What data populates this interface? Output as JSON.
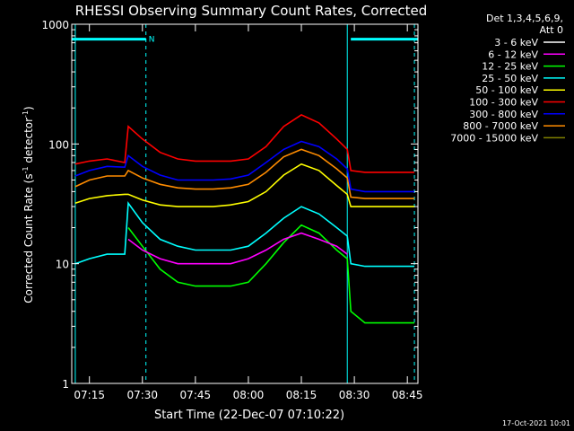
{
  "chart_data": {
    "type": "line",
    "title": "RHESSI Observing Summary Count Rates, Corrected",
    "xlabel": "Start Time (22-Dec-07 07:10:22)",
    "ylabel_main": "Corrected Count Rate (s",
    "ylabel_sup1": "-1",
    "ylabel_mid": " detector",
    "ylabel_sup2": "-1",
    "ylabel_end": ")",
    "yscale": "log",
    "ylim": [
      1,
      1000
    ],
    "xlim": [
      "07:10",
      "08:48"
    ],
    "x_ticks": [
      "07:15",
      "07:30",
      "07:45",
      "08:00",
      "08:15",
      "08:30",
      "08:45"
    ],
    "y_ticks": [
      "1",
      "10",
      "100",
      "1000"
    ],
    "grid": false,
    "legend_placement": "right",
    "legend_header": [
      "Det 1,3,4,5,6,9,",
      "Att 0"
    ],
    "timestamp": "17-Oct-2021 10:01",
    "night_marker": "N",
    "annotations": {
      "bar_intervals": [
        [
          "07:10",
          "07:31"
        ],
        [
          "08:29",
          "08:48"
        ]
      ],
      "dashed_lines": [
        "07:31",
        "08:47"
      ],
      "solid_lines": [
        "07:11",
        "08:28"
      ],
      "bar_level": 750
    },
    "x": [
      "07:11",
      "07:15",
      "07:20",
      "07:25",
      "07:26",
      "07:30",
      "07:35",
      "07:40",
      "07:45",
      "07:50",
      "07:55",
      "08:00",
      "08:05",
      "08:10",
      "08:15",
      "08:20",
      "08:25",
      "08:28",
      "08:29",
      "08:33",
      "08:38",
      "08:43",
      "08:47"
    ],
    "series": [
      {
        "name": "3 - 6 keV",
        "color": "#ffffff",
        "values": [
          null,
          null,
          null,
          null,
          null,
          null,
          null,
          null,
          null,
          null,
          null,
          null,
          null,
          null,
          null,
          null,
          null,
          null,
          null,
          null,
          null,
          null,
          null
        ]
      },
      {
        "name": "6 - 12 keV",
        "color": "#ff00ff",
        "values": [
          null,
          null,
          null,
          null,
          16,
          13,
          11,
          10,
          10,
          10,
          10,
          11,
          13,
          16,
          18,
          16,
          14,
          12,
          null,
          null,
          null,
          null,
          null
        ]
      },
      {
        "name": "12 - 25 keV",
        "color": "#00ff00",
        "values": [
          null,
          null,
          null,
          null,
          20,
          14,
          9,
          7,
          6.5,
          6.5,
          6.5,
          7,
          10,
          15,
          21,
          18,
          13,
          11,
          4,
          3.2,
          3.2,
          3.2,
          3.2
        ]
      },
      {
        "name": "25 - 50 keV",
        "color": "#00ffff",
        "values": [
          10,
          11,
          12,
          12,
          32,
          22,
          16,
          14,
          13,
          13,
          13,
          14,
          18,
          24,
          30,
          26,
          20,
          17,
          10,
          9.5,
          9.5,
          9.5,
          9.5
        ]
      },
      {
        "name": "50 - 100 keV",
        "color": "#ffff00",
        "values": [
          32,
          35,
          37,
          38,
          38,
          34,
          31,
          30,
          30,
          30,
          31,
          33,
          40,
          55,
          68,
          60,
          45,
          38,
          30,
          30,
          30,
          30,
          30
        ]
      },
      {
        "name": "100 - 300 keV",
        "color": "#ff0000",
        "values": [
          68,
          72,
          75,
          70,
          140,
          110,
          85,
          75,
          72,
          72,
          72,
          75,
          95,
          140,
          175,
          150,
          110,
          90,
          60,
          58,
          58,
          58,
          58
        ]
      },
      {
        "name": "300 - 800 keV",
        "color": "#0000ff",
        "values": [
          54,
          60,
          65,
          64,
          80,
          65,
          55,
          50,
          50,
          50,
          51,
          55,
          70,
          90,
          105,
          95,
          75,
          62,
          42,
          40,
          40,
          40,
          40
        ]
      },
      {
        "name": "800 - 7000 keV",
        "color": "#ff8c00",
        "values": [
          44,
          50,
          54,
          54,
          60,
          52,
          46,
          43,
          42,
          42,
          43,
          46,
          58,
          78,
          90,
          80,
          62,
          52,
          36,
          35,
          35,
          35,
          35
        ]
      },
      {
        "name": "7000 - 15000 keV",
        "color": "#808000",
        "values": [
          null,
          null,
          null,
          null,
          null,
          null,
          null,
          null,
          null,
          null,
          null,
          null,
          null,
          null,
          null,
          null,
          null,
          null,
          null,
          null,
          null,
          null,
          null
        ]
      }
    ]
  }
}
